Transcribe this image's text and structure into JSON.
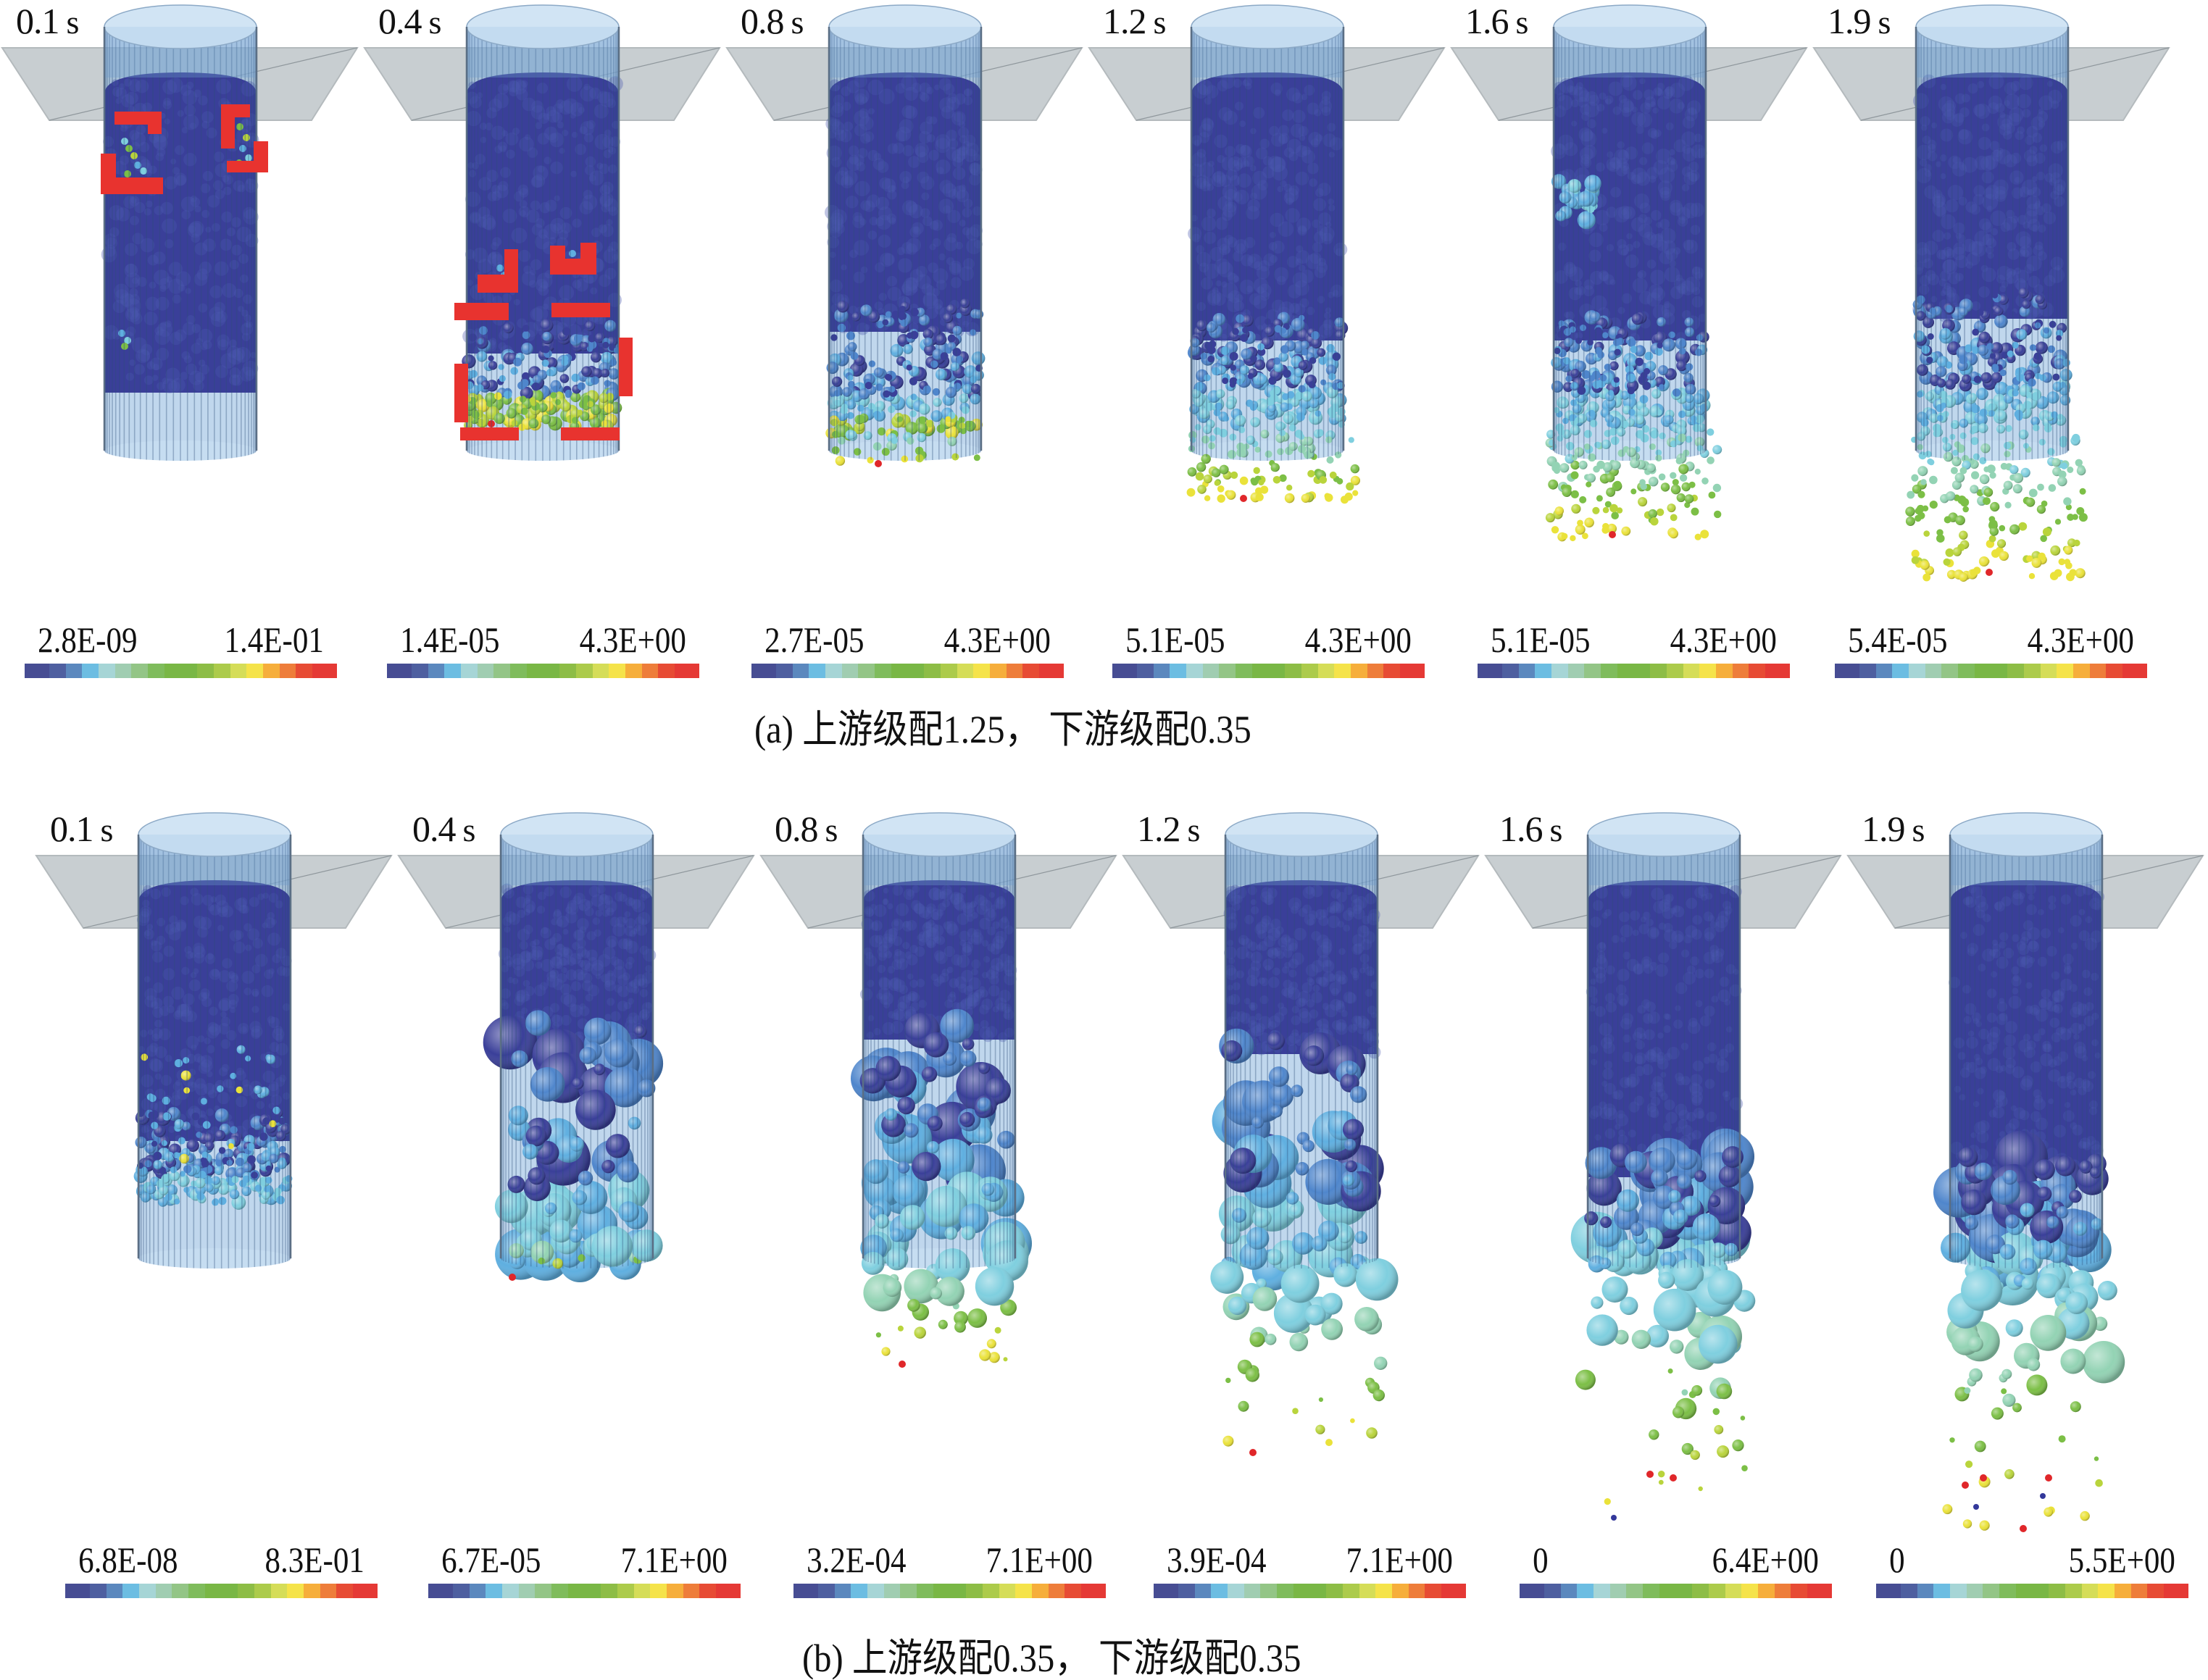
{
  "figure": {
    "rows": [
      {
        "id": "a",
        "caption": "(a) 上游级配1.25， 下游级配0.35",
        "panels": [
          {
            "time": "0.1",
            "unit": "s",
            "cbar_min": "2.8E-09",
            "cbar_max": "1.4E-01"
          },
          {
            "time": "0.4",
            "unit": "s",
            "cbar_min": "1.4E-05",
            "cbar_max": "4.3E+00"
          },
          {
            "time": "0.8",
            "unit": "s",
            "cbar_min": "2.7E-05",
            "cbar_max": "4.3E+00"
          },
          {
            "time": "1.2",
            "unit": "s",
            "cbar_min": "5.1E-05",
            "cbar_max": "4.3E+00"
          },
          {
            "time": "1.6",
            "unit": "s",
            "cbar_min": "5.1E-05",
            "cbar_max": "4.3E+00"
          },
          {
            "time": "1.9",
            "unit": "s",
            "cbar_min": "5.4E-05",
            "cbar_max": "4.3E+00"
          }
        ]
      },
      {
        "id": "b",
        "caption": "(b) 上游级配0.35， 下游级配0.35",
        "panels": [
          {
            "time": "0.1",
            "unit": "s",
            "cbar_min": "6.8E-08",
            "cbar_max": "8.3E-01"
          },
          {
            "time": "0.4",
            "unit": "s",
            "cbar_min": "6.7E-05",
            "cbar_max": "7.1E+00"
          },
          {
            "time": "0.8",
            "unit": "s",
            "cbar_min": "3.2E-04",
            "cbar_max": "7.1E+00"
          },
          {
            "time": "1.2",
            "unit": "s",
            "cbar_min": "3.9E-04",
            "cbar_max": "7.1E+00"
          },
          {
            "time": "1.6",
            "unit": "s",
            "cbar_min": "0",
            "cbar_max": "6.4E+00"
          },
          {
            "time": "1.9",
            "unit": "s",
            "cbar_min": "0",
            "cbar_max": "5.5E+00"
          }
        ]
      }
    ],
    "colormap": [
      "#474D93",
      "#4E5FA0",
      "#5B88BE",
      "#6CBDE2",
      "#A6D5D6",
      "#A0CDB1",
      "#93C586",
      "#7FBC5C",
      "#79B745",
      "#79B745",
      "#8DBD46",
      "#ACCB4B",
      "#D5DD58",
      "#F5E34A",
      "#F6AE3B",
      "#EE7D3A",
      "#E74B34",
      "#E53935"
    ],
    "highlight_color": "#E8332F",
    "particle_colors": {
      "bed": "#3A3F99",
      "bed_light": "#4A5AAE",
      "mid_blue": "#4F86CC",
      "light_blue": "#5FAFE0",
      "cyan": "#7FCFDF",
      "mint": "#93D3B4",
      "green": "#7CBF46",
      "yellow_green": "#B9D43C",
      "yellow": "#EAE23A",
      "red": "#E0272A",
      "dark_dot": "#33389A"
    }
  }
}
